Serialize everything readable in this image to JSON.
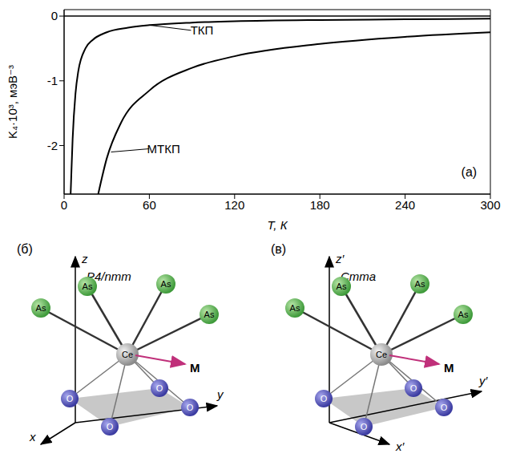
{
  "chart_data": {
    "type": "line",
    "label": "(а)",
    "x_label": "T, К",
    "y_label": "K₄·10³, мэВ⁻³",
    "xlim": [
      0,
      300
    ],
    "xticks": [
      0,
      60,
      120,
      180,
      240,
      300
    ],
    "ylim": [
      -2.75,
      0.1
    ],
    "yticks": [
      0,
      -1,
      -2
    ],
    "hline": 0,
    "grid": false,
    "series": [
      {
        "name": "ТКП",
        "color": "#000000",
        "x": [
          4.6,
          5,
          6,
          8,
          10,
          15,
          20,
          30,
          45,
          60,
          90,
          120,
          180,
          240,
          300
        ],
        "values": [
          -2.75,
          -2.5,
          -1.9,
          -1.2,
          -0.85,
          -0.5,
          -0.37,
          -0.25,
          -0.18,
          -0.14,
          -0.1,
          -0.08,
          -0.06,
          -0.05,
          -0.04
        ]
      },
      {
        "name": "МТКП",
        "color": "#000000",
        "x": [
          24,
          30,
          40,
          60,
          90,
          120,
          180,
          240,
          300
        ],
        "values": [
          -2.75,
          -2.2,
          -1.65,
          -1.15,
          -0.8,
          -0.62,
          -0.43,
          -0.32,
          -0.25
        ]
      }
    ],
    "annotations": [
      {
        "text": "ТКП",
        "x": 97,
        "y": -0.22,
        "arrow_to": [
          60,
          -0.14
        ]
      },
      {
        "text": "МТКП",
        "x": 70,
        "y": -2.05,
        "arrow_to": [
          33,
          -2.1
        ]
      }
    ]
  },
  "diagrams": [
    {
      "label": "(б)",
      "space_group": "P4/nmm",
      "axes": {
        "x": "x",
        "y": "y",
        "z": "z"
      },
      "atoms": {
        "top": [
          "As",
          "As",
          "As",
          "As"
        ],
        "center": "Ce",
        "bottom": [
          "O",
          "O",
          "O",
          "O"
        ]
      },
      "vector": "M"
    },
    {
      "label": "(в)",
      "space_group": "Cmma",
      "axes": {
        "x": "x′",
        "y": "y′",
        "z": "z′"
      },
      "atoms": {
        "top": [
          "As",
          "As",
          "As",
          "As"
        ],
        "center": "Ce",
        "bottom": [
          "O",
          "O",
          "O",
          "O"
        ]
      },
      "vector": "M"
    }
  ]
}
